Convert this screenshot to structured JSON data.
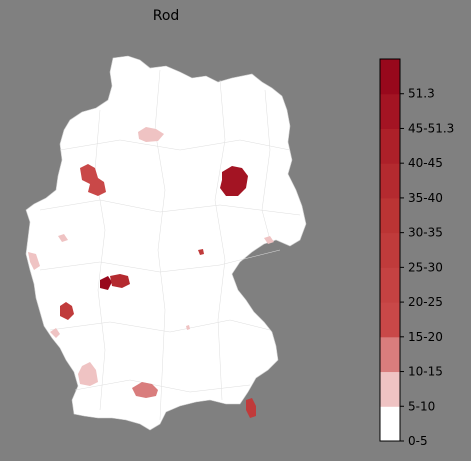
{
  "title": "Rod",
  "legend": {
    "top_label": "51.3",
    "bins": [
      {
        "label": "0-5",
        "color": "#ffffff"
      },
      {
        "label": "5-10",
        "color": "#efc3c3"
      },
      {
        "label": "10-15",
        "color": "#d97d7d"
      },
      {
        "label": "15-20",
        "color": "#c94848"
      },
      {
        "label": "20-25",
        "color": "#c54242"
      },
      {
        "label": "25-30",
        "color": "#c03b3b"
      },
      {
        "label": "30-35",
        "color": "#bb3434"
      },
      {
        "label": "35-40",
        "color": "#b42a2f"
      },
      {
        "label": "40-45",
        "color": "#ad2029"
      },
      {
        "label": "45-51.3",
        "color": "#a31423"
      },
      {
        "label": "",
        "color": "#98081c"
      }
    ]
  },
  "map": {
    "base_fill": "#ffffff",
    "border_color": "#d8d8d8",
    "background": "#808080"
  }
}
